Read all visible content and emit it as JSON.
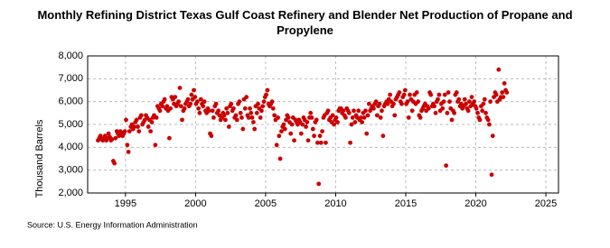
{
  "chart_data": {
    "type": "scatter",
    "title": "Monthly Refining District Texas Gulf Coast Refinery and Blender Net Production of Propane and Propylene",
    "y_label": "Thousand Barrels",
    "source": "Source: U.S. Energy Information Administration",
    "xlim": [
      1992.3,
      2025.9
    ],
    "ylim": [
      2000,
      8000
    ],
    "xticks": [
      1995,
      2000,
      2005,
      2010,
      2015,
      2020,
      2025
    ],
    "yticks": [
      {
        "value": 2000,
        "label": "2,000"
      },
      {
        "value": 3000,
        "label": "3,000"
      },
      {
        "value": 4000,
        "label": "4,000"
      },
      {
        "value": 5000,
        "label": "5,000"
      },
      {
        "value": 6000,
        "label": "6,000"
      },
      {
        "value": 7000,
        "label": "7,000"
      },
      {
        "value": 8000,
        "label": "8,000"
      }
    ],
    "grid": true,
    "series": [
      {
        "color": "#cc0000",
        "x": [
          1993.04,
          1993.13,
          1993.21,
          1993.29,
          1993.38,
          1993.46,
          1993.54,
          1993.63,
          1993.71,
          1993.79,
          1993.88,
          1993.96,
          1994.04,
          1994.13,
          1994.21,
          1994.29,
          1994.38,
          1994.46,
          1994.54,
          1994.63,
          1994.71,
          1994.79,
          1994.88,
          1994.96,
          1995.04,
          1995.13,
          1995.21,
          1995.29,
          1995.38,
          1995.46,
          1995.54,
          1995.63,
          1995.71,
          1995.79,
          1995.88,
          1995.96,
          1996.04,
          1996.13,
          1996.21,
          1996.29,
          1996.38,
          1996.46,
          1996.54,
          1996.63,
          1996.71,
          1996.79,
          1996.88,
          1996.96,
          1997.04,
          1997.13,
          1997.21,
          1997.29,
          1997.38,
          1997.46,
          1997.54,
          1997.63,
          1997.71,
          1997.79,
          1997.88,
          1997.96,
          1998.04,
          1998.13,
          1998.21,
          1998.29,
          1998.38,
          1998.46,
          1998.54,
          1998.63,
          1998.71,
          1998.79,
          1998.88,
          1998.96,
          1999.04,
          1999.13,
          1999.21,
          1999.29,
          1999.38,
          1999.46,
          1999.54,
          1999.63,
          1999.71,
          1999.79,
          1999.88,
          1999.96,
          2000.04,
          2000.13,
          2000.21,
          2000.29,
          2000.38,
          2000.46,
          2000.54,
          2000.63,
          2000.71,
          2000.79,
          2000.88,
          2000.96,
          2001.04,
          2001.13,
          2001.21,
          2001.29,
          2001.38,
          2001.46,
          2001.54,
          2001.63,
          2001.71,
          2001.79,
          2001.88,
          2001.96,
          2002.04,
          2002.13,
          2002.21,
          2002.29,
          2002.38,
          2002.46,
          2002.54,
          2002.63,
          2002.71,
          2002.79,
          2002.88,
          2002.96,
          2003.04,
          2003.13,
          2003.21,
          2003.29,
          2003.38,
          2003.46,
          2003.54,
          2003.63,
          2003.71,
          2003.79,
          2003.88,
          2003.96,
          2004.04,
          2004.13,
          2004.21,
          2004.29,
          2004.38,
          2004.46,
          2004.54,
          2004.63,
          2004.71,
          2004.79,
          2004.88,
          2004.96,
          2005.04,
          2005.13,
          2005.21,
          2005.29,
          2005.38,
          2005.46,
          2005.54,
          2005.63,
          2005.71,
          2005.79,
          2005.88,
          2005.96,
          2006.04,
          2006.13,
          2006.21,
          2006.29,
          2006.38,
          2006.46,
          2006.54,
          2006.63,
          2006.71,
          2006.79,
          2006.88,
          2006.96,
          2007.04,
          2007.13,
          2007.21,
          2007.29,
          2007.38,
          2007.46,
          2007.54,
          2007.63,
          2007.71,
          2007.79,
          2007.88,
          2007.96,
          2008.04,
          2008.13,
          2008.21,
          2008.29,
          2008.38,
          2008.46,
          2008.54,
          2008.63,
          2008.71,
          2008.79,
          2008.88,
          2008.96,
          2009.04,
          2009.13,
          2009.21,
          2009.29,
          2009.38,
          2009.46,
          2009.54,
          2009.63,
          2009.71,
          2009.79,
          2009.88,
          2009.96,
          2010.04,
          2010.13,
          2010.21,
          2010.29,
          2010.38,
          2010.46,
          2010.54,
          2010.63,
          2010.71,
          2010.79,
          2010.88,
          2010.96,
          2011.04,
          2011.13,
          2011.21,
          2011.29,
          2011.38,
          2011.46,
          2011.54,
          2011.63,
          2011.71,
          2011.79,
          2011.88,
          2011.96,
          2012.04,
          2012.13,
          2012.21,
          2012.29,
          2012.38,
          2012.46,
          2012.54,
          2012.63,
          2012.71,
          2012.79,
          2012.88,
          2012.96,
          2013.04,
          2013.13,
          2013.21,
          2013.29,
          2013.38,
          2013.46,
          2013.54,
          2013.63,
          2013.71,
          2013.79,
          2013.88,
          2013.96,
          2014.04,
          2014.13,
          2014.21,
          2014.29,
          2014.38,
          2014.46,
          2014.54,
          2014.63,
          2014.71,
          2014.79,
          2014.88,
          2014.96,
          2015.04,
          2015.13,
          2015.21,
          2015.29,
          2015.38,
          2015.46,
          2015.54,
          2015.63,
          2015.71,
          2015.79,
          2015.88,
          2015.96,
          2016.04,
          2016.13,
          2016.21,
          2016.29,
          2016.38,
          2016.46,
          2016.54,
          2016.63,
          2016.71,
          2016.79,
          2016.88,
          2016.96,
          2017.04,
          2017.13,
          2017.21,
          2017.29,
          2017.38,
          2017.46,
          2017.54,
          2017.63,
          2017.71,
          2017.79,
          2017.88,
          2017.96,
          2018.04,
          2018.13,
          2018.21,
          2018.29,
          2018.38,
          2018.46,
          2018.54,
          2018.63,
          2018.71,
          2018.79,
          2018.88,
          2018.96,
          2019.04,
          2019.13,
          2019.21,
          2019.29,
          2019.38,
          2019.46,
          2019.54,
          2019.63,
          2019.71,
          2019.79,
          2019.88,
          2019.96,
          2020.04,
          2020.13,
          2020.21,
          2020.29,
          2020.38,
          2020.46,
          2020.54,
          2020.63,
          2020.71,
          2020.79,
          2020.88,
          2020.96,
          2021.04,
          2021.13,
          2021.21,
          2021.29,
          2021.38,
          2021.46,
          2021.54,
          2021.63,
          2021.71,
          2021.79,
          2021.88,
          2021.96,
          2022.04,
          2022.13,
          2022.21
        ],
        "values": [
          4300,
          4400,
          4500,
          4350,
          4300,
          4400,
          4500,
          4300,
          4400,
          4600,
          4450,
          4300,
          4350,
          3400,
          3300,
          4400,
          4700,
          4600,
          4500,
          4700,
          4650,
          4500,
          4600,
          4700,
          5200,
          4100,
          3800,
          4700,
          4900,
          5000,
          4800,
          4900,
          5100,
          5200,
          4900,
          4700,
          5300,
          5400,
          5000,
          5100,
          5200,
          5400,
          5300,
          4900,
          5200,
          4700,
          5100,
          5300,
          5400,
          4100,
          5300,
          5800,
          5700,
          5600,
          5900,
          5800,
          6000,
          6100,
          5700,
          5800,
          5600,
          4400,
          5700,
          6200,
          6100,
          5900,
          6200,
          5800,
          5900,
          6000,
          6600,
          5800,
          5200,
          5600,
          5700,
          5900,
          6000,
          6100,
          5800,
          5900,
          6300,
          6100,
          6500,
          6200,
          5900,
          6000,
          5700,
          5500,
          6100,
          5900,
          5800,
          6000,
          5600,
          5500,
          5700,
          5600,
          4600,
          4500,
          5600,
          5300,
          5800,
          5900,
          5500,
          5600,
          5400,
          5200,
          5300,
          5500,
          5400,
          5200,
          5700,
          5500,
          4900,
          5800,
          5900,
          5600,
          5700,
          5300,
          5400,
          5200,
          5900,
          6000,
          5500,
          5300,
          4800,
          6100,
          5700,
          6200,
          5400,
          5300,
          5700,
          5500,
          5300,
          5100,
          4800,
          5800,
          5500,
          5900,
          5700,
          5300,
          5600,
          5800,
          6000,
          6200,
          6300,
          6500,
          5900,
          5800,
          5900,
          6000,
          5700,
          5400,
          5200,
          4100,
          5300,
          4500,
          3500,
          4700,
          4900,
          5000,
          4800,
          5200,
          5400,
          5300,
          5100,
          4600,
          5000,
          5300,
          4300,
          5200,
          5100,
          5000,
          5200,
          5100,
          4600,
          5000,
          5300,
          5200,
          4900,
          5100,
          4300,
          5300,
          5500,
          5300,
          4800,
          4500,
          5100,
          5200,
          4200,
          2400,
          4500,
          4200,
          4700,
          5300,
          5400,
          4200,
          5500,
          5600,
          5200,
          5300,
          5100,
          5400,
          5000,
          5200,
          5300,
          5100,
          5600,
          5700,
          5700,
          5500,
          5600,
          5400,
          5300,
          5700,
          5600,
          5500,
          4200,
          5000,
          5300,
          5600,
          5100,
          5400,
          5300,
          5600,
          5200,
          5300,
          5100,
          5500,
          5300,
          5600,
          4600,
          5400,
          5900,
          5600,
          5700,
          5800,
          5700,
          5900,
          6000,
          5400,
          5800,
          5900,
          5300,
          5600,
          4500,
          5800,
          5900,
          6000,
          5900,
          6100,
          6300,
          6000,
          5800,
          5900,
          5400,
          6100,
          6200,
          6300,
          6400,
          6000,
          5900,
          6200,
          6300,
          6500,
          5900,
          6000,
          5300,
          6300,
          6100,
          5600,
          6000,
          6300,
          5900,
          6400,
          6000,
          5400,
          5300,
          5600,
          5700,
          5800,
          5900,
          5600,
          5800,
          5700,
          6400,
          6300,
          5800,
          5900,
          5800,
          5500,
          6000,
          6100,
          6300,
          5600,
          5900,
          5700,
          6000,
          6300,
          3200,
          5500,
          6400,
          6000,
          5700,
          5200,
          5600,
          5500,
          6300,
          6400,
          6000,
          6100,
          5800,
          5900,
          5700,
          5800,
          6100,
          5900,
          5700,
          5600,
          6000,
          5800,
          6200,
          5900,
          6000,
          5800,
          5700,
          5500,
          5300,
          5200,
          5800,
          5600,
          5900,
          6100,
          5500,
          5300,
          5200,
          5000,
          6000,
          2800,
          4500,
          6200,
          6400,
          6300,
          6000,
          7400,
          6100,
          6200,
          6400,
          6200,
          6800,
          6500,
          6400
        ]
      }
    ]
  }
}
